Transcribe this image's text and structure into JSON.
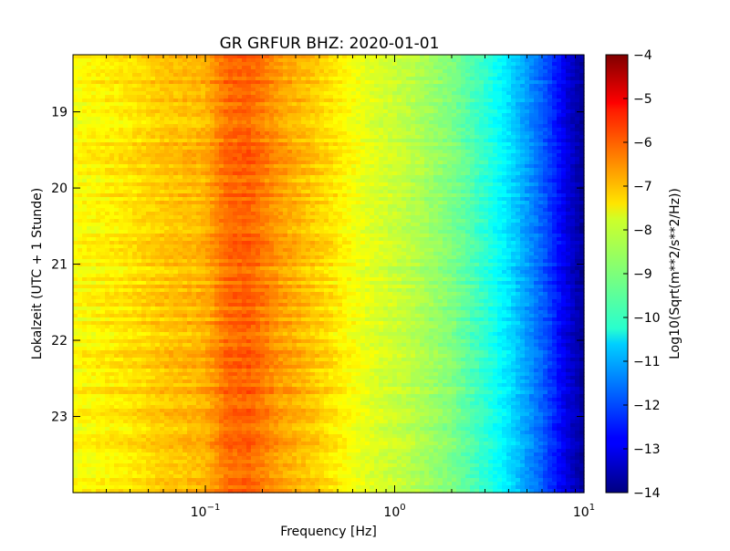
{
  "chart_data": {
    "type": "heatmap",
    "title": "GR GRFUR BHZ: 2020-01-01",
    "xlabel": "Frequency [Hz]",
    "ylabel": "Lokalzeit (UTC + 1 Stunde)",
    "x_scale": "log",
    "xlim": [
      0.02,
      10
    ],
    "ylim": [
      18.25,
      24.0
    ],
    "y_inverted": true,
    "x_ticks": [
      {
        "value": 0.1,
        "base": "10",
        "exp": "−1"
      },
      {
        "value": 1,
        "base": "10",
        "exp": "0"
      },
      {
        "value": 10,
        "base": "10",
        "exp": "1"
      }
    ],
    "y_ticks": [
      {
        "value": 19,
        "label": "19"
      },
      {
        "value": 20,
        "label": "20"
      },
      {
        "value": 21,
        "label": "21"
      },
      {
        "value": 22,
        "label": "22"
      },
      {
        "value": 23,
        "label": "23"
      }
    ],
    "colorbar": {
      "label": "Log10(Sqrt(m**2/s**2/Hz))",
      "range": [
        -14,
        -4
      ],
      "colormap": "jet",
      "ticks": [
        "−4",
        "−5",
        "−6",
        "−7",
        "−8",
        "−9",
        "−10",
        "−11",
        "−12",
        "−13",
        "−14"
      ]
    },
    "spectrum_profile": [
      {
        "freq": 0.02,
        "value": -7.8
      },
      {
        "freq": 0.04,
        "value": -7.5
      },
      {
        "freq": 0.06,
        "value": -7.2
      },
      {
        "freq": 0.1,
        "value": -7.0
      },
      {
        "freq": 0.13,
        "value": -6.3
      },
      {
        "freq": 0.17,
        "value": -6.2
      },
      {
        "freq": 0.25,
        "value": -6.8
      },
      {
        "freq": 0.4,
        "value": -7.3
      },
      {
        "freq": 0.7,
        "value": -8.0
      },
      {
        "freq": 1.2,
        "value": -8.4
      },
      {
        "freq": 2.0,
        "value": -9.0
      },
      {
        "freq": 3.0,
        "value": -9.8
      },
      {
        "freq": 4.0,
        "value": -10.5
      },
      {
        "freq": 6.0,
        "value": -11.8
      },
      {
        "freq": 8.0,
        "value": -13.0
      },
      {
        "freq": 10.0,
        "value": -13.8
      }
    ]
  }
}
